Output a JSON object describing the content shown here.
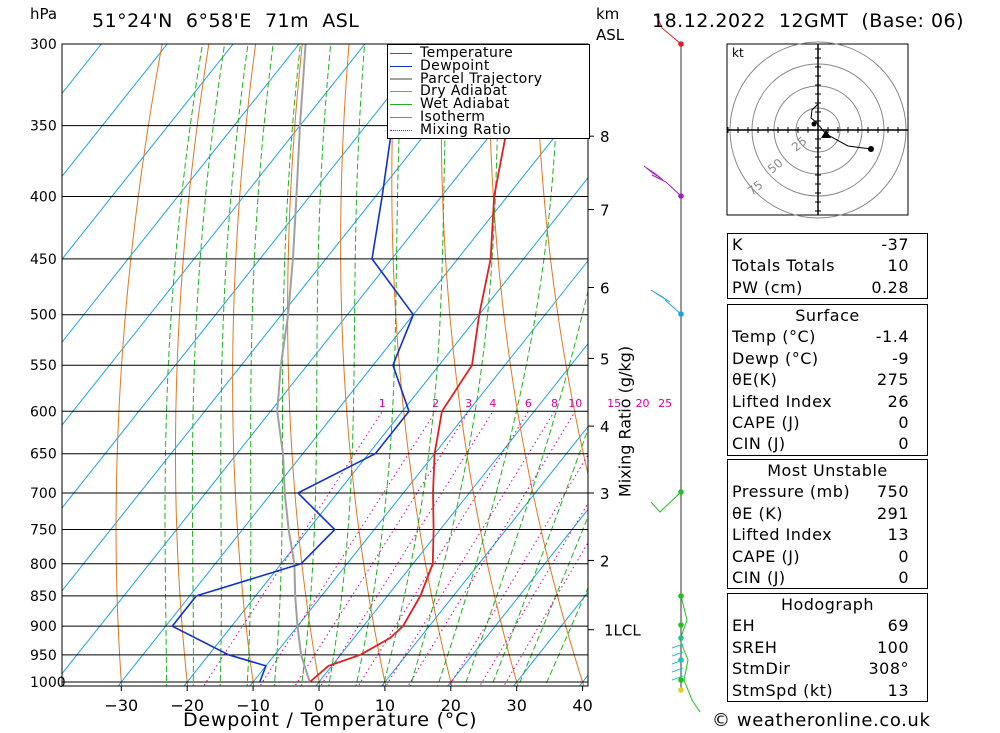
{
  "header": {
    "left_unit": "hPa",
    "location": "51°24'N  6°58'E  71m  ASL",
    "km_unit": "km",
    "asl_unit": "ASL",
    "datetime": "18.12.2022  12GMT  (Base: 06)"
  },
  "chart_data": {
    "type": "skew-t",
    "xlabel": "Dewpoint / Temperature (°C)",
    "ylabel_right": "Mixing Ratio (g/kg)",
    "x_ticks": [
      -30,
      -20,
      -10,
      0,
      10,
      20,
      30,
      40
    ],
    "p_ticks": [
      300,
      350,
      400,
      450,
      500,
      550,
      600,
      650,
      700,
      750,
      800,
      850,
      900,
      950,
      1000
    ],
    "km_ticks": [
      {
        "label": "8",
        "p": 357
      },
      {
        "label": "7",
        "p": 410
      },
      {
        "label": "6",
        "p": 475
      },
      {
        "label": "5",
        "p": 543
      },
      {
        "label": "4",
        "p": 617
      },
      {
        "label": "3",
        "p": 700
      },
      {
        "label": "2",
        "p": 795
      },
      {
        "label": "1LCL",
        "p": 906
      }
    ],
    "mixing_ratio_labels": [
      "1",
      "2",
      "3",
      "4",
      "6",
      "8",
      "10",
      "15",
      "20",
      "25"
    ],
    "legend": [
      "Temperature",
      "Dewpoint",
      "Parcel Trajectory",
      "Dry Adiabat",
      "Wet Adiabat",
      "Isotherm",
      "Mixing Ratio"
    ],
    "colors": {
      "temperature": "#e02020",
      "dewpoint": "#1030d0",
      "parcel": "#a0a0a0",
      "dry_adiabat": "#e07820",
      "wet_adiabat": "#20b020",
      "isotherm": "#20a0e0",
      "mixing_ratio": "#d000a0"
    },
    "temperature": [
      [
        1000,
        -1.4
      ],
      [
        970,
        -0.5
      ],
      [
        950,
        3
      ],
      [
        920,
        5.5
      ],
      [
        900,
        6
      ],
      [
        850,
        5
      ],
      [
        800,
        3
      ],
      [
        750,
        -1
      ],
      [
        700,
        -5.5
      ],
      [
        650,
        -10
      ],
      [
        600,
        -14
      ],
      [
        550,
        -15
      ],
      [
        500,
        -20
      ],
      [
        450,
        -25
      ],
      [
        400,
        -32
      ],
      [
        350,
        -38.5
      ],
      [
        300,
        -45
      ]
    ],
    "dewpoint": [
      [
        1000,
        -9
      ],
      [
        970,
        -10
      ],
      [
        950,
        -17
      ],
      [
        900,
        -29
      ],
      [
        850,
        -29
      ],
      [
        800,
        -17
      ],
      [
        750,
        -16
      ],
      [
        700,
        -26
      ],
      [
        650,
        -19
      ],
      [
        600,
        -19
      ],
      [
        550,
        -27
      ],
      [
        500,
        -30
      ],
      [
        450,
        -43
      ],
      [
        400,
        -49
      ],
      [
        350,
        -56
      ],
      [
        300,
        -62
      ]
    ],
    "parcel": [
      [
        1000,
        -1.4
      ],
      [
        950,
        -6
      ],
      [
        900,
        -10
      ],
      [
        850,
        -14
      ],
      [
        800,
        -18
      ],
      [
        750,
        -23
      ],
      [
        700,
        -28
      ],
      [
        650,
        -33
      ],
      [
        600,
        -39
      ],
      [
        550,
        -44
      ],
      [
        500,
        -49
      ],
      [
        450,
        -55
      ],
      [
        400,
        -62
      ],
      [
        350,
        -70
      ],
      [
        300,
        -79
      ]
    ]
  },
  "hodograph": {
    "unit": "kt",
    "ring_labels": [
      "25",
      "50",
      "75"
    ]
  },
  "indices": {
    "k_label": "K",
    "k_value": "-37",
    "tt_label": "Totals Totals",
    "tt_value": "10",
    "pw_label": "PW (cm)",
    "pw_value": "0.28"
  },
  "surface": {
    "title": "Surface",
    "rows": [
      {
        "label": "Temp (°C)",
        "value": "-1.4"
      },
      {
        "label": "Dewp (°C)",
        "value": "-9"
      },
      {
        "label": "θE(K)",
        "value": "275"
      },
      {
        "label": "Lifted Index",
        "value": "26"
      },
      {
        "label": "CAPE (J)",
        "value": "0"
      },
      {
        "label": "CIN (J)",
        "value": "0"
      }
    ]
  },
  "most_unstable": {
    "title": "Most Unstable",
    "rows": [
      {
        "label": "Pressure (mb)",
        "value": "750"
      },
      {
        "label": "θE (K)",
        "value": "291"
      },
      {
        "label": "Lifted Index",
        "value": "13"
      },
      {
        "label": "CAPE (J)",
        "value": "0"
      },
      {
        "label": "CIN (J)",
        "value": "0"
      }
    ]
  },
  "hodograph_table": {
    "title": "Hodograph",
    "rows": [
      {
        "label": "EH",
        "value": "69"
      },
      {
        "label": "SREH",
        "value": "100"
      },
      {
        "label": "StmDir",
        "value": "308°"
      },
      {
        "label": "StmSpd (kt)",
        "value": "13"
      }
    ]
  },
  "footer": {
    "copyright": "© weatheronline.co.uk"
  }
}
